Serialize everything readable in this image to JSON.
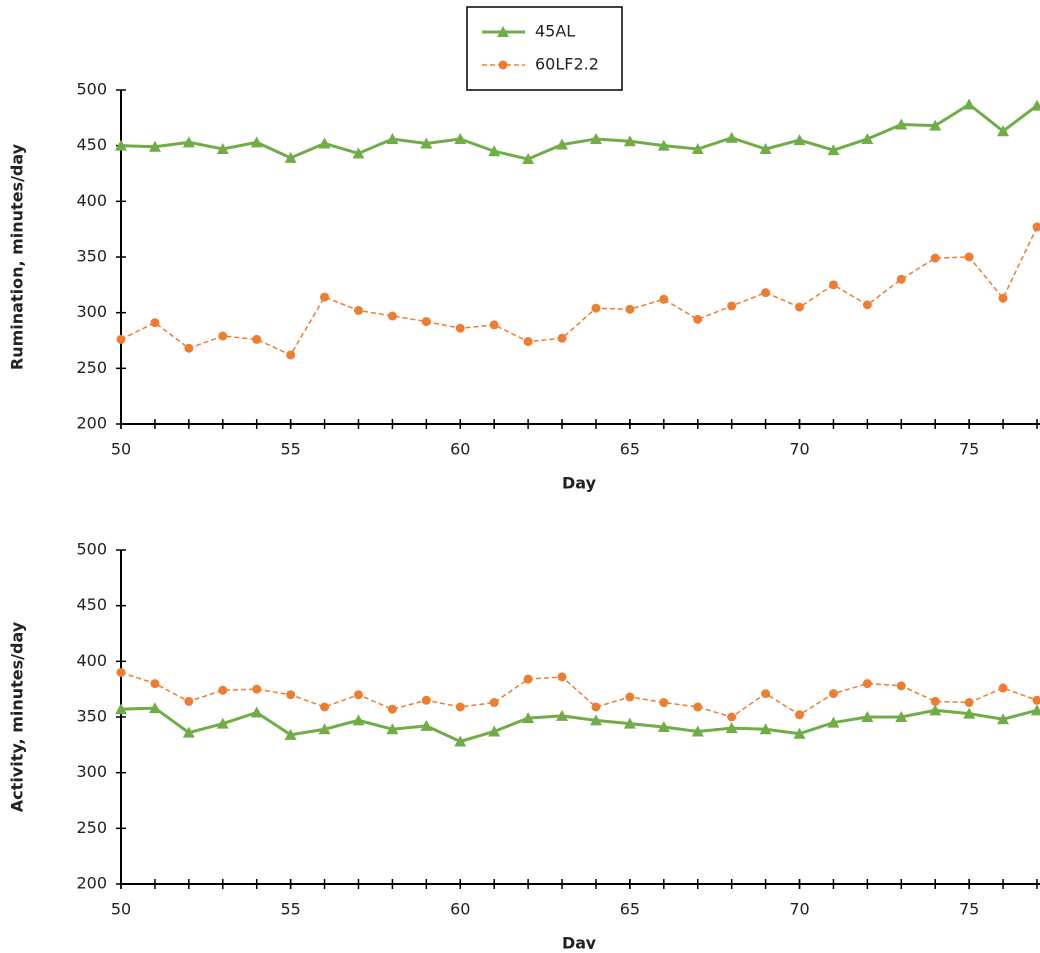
{
  "chart_data": [
    {
      "type": "line",
      "xlabel": "Day",
      "ylabel": "Rumination, minutes/day",
      "x": [
        50,
        51,
        52,
        53,
        54,
        55,
        56,
        57,
        58,
        59,
        60,
        61,
        62,
        63,
        64,
        65,
        66,
        67,
        68,
        69,
        70,
        71,
        72,
        73,
        74,
        75,
        76,
        77
      ],
      "series": [
        {
          "name": "45AL",
          "color": "#70ad47",
          "marker": "triangle",
          "linestyle": "solid",
          "values": [
            450,
            449,
            453,
            447,
            453,
            439,
            452,
            443,
            456,
            452,
            456,
            445,
            438,
            451,
            456,
            454,
            450,
            447,
            457,
            447,
            455,
            446,
            456,
            469,
            468,
            487,
            463,
            486
          ]
        },
        {
          "name": "60LF2.2",
          "color": "#ed7d31",
          "marker": "circle",
          "linestyle": "dashed",
          "values": [
            276,
            291,
            268,
            279,
            276,
            262,
            314,
            302,
            297,
            292,
            286,
            289,
            274,
            277,
            304,
            303,
            312,
            294,
            306,
            318,
            305,
            325,
            307,
            330,
            349,
            350,
            313,
            377
          ]
        }
      ],
      "xlim": [
        50,
        77
      ],
      "ylim": [
        200,
        500
      ],
      "xticks": [
        50,
        55,
        60,
        65,
        70,
        75
      ],
      "yticks": [
        200,
        250,
        300,
        350,
        400,
        450,
        500
      ],
      "legend": "top"
    },
    {
      "type": "line",
      "xlabel": "Day",
      "ylabel": "Activity, minutes/day",
      "x": [
        50,
        51,
        52,
        53,
        54,
        55,
        56,
        57,
        58,
        59,
        60,
        61,
        62,
        63,
        64,
        65,
        66,
        67,
        68,
        69,
        70,
        71,
        72,
        73,
        74,
        75,
        76,
        77
      ],
      "series": [
        {
          "color": "#70ad47",
          "marker": "triangle",
          "linestyle": "solid",
          "values": [
            357,
            358,
            336,
            344,
            354,
            334,
            339,
            347,
            339,
            342,
            328,
            337,
            349,
            351,
            347,
            344,
            341,
            337,
            340,
            339,
            335,
            345,
            350,
            350,
            356,
            353,
            348,
            356
          ]
        },
        {
          "color": "#ed7d31",
          "marker": "circle",
          "linestyle": "dashed",
          "values": [
            390,
            380,
            364,
            374,
            375,
            370,
            359,
            370,
            357,
            365,
            359,
            363,
            384,
            386,
            359,
            368,
            363,
            359,
            350,
            371,
            352,
            371,
            380,
            378,
            364,
            363,
            376,
            365
          ]
        }
      ],
      "xlim": [
        50,
        77
      ],
      "ylim": [
        200,
        500
      ],
      "xticks": [
        50,
        55,
        60,
        65,
        70,
        75
      ],
      "yticks": [
        200,
        250,
        300,
        350,
        400,
        450,
        500
      ]
    }
  ]
}
